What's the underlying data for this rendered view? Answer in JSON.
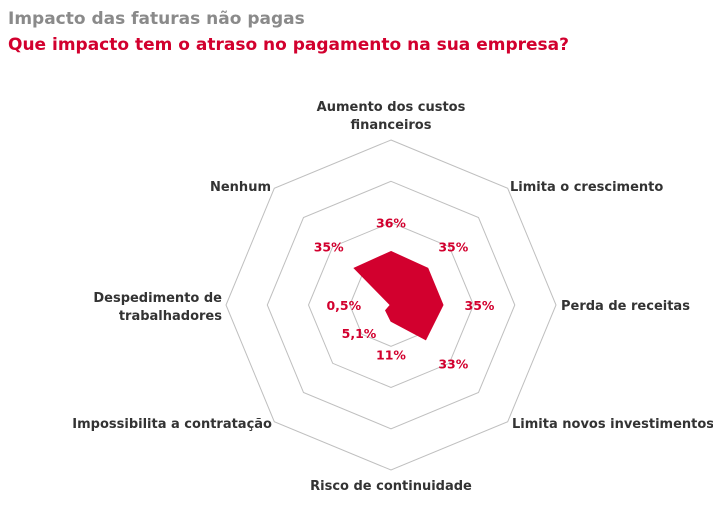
{
  "title": "Impacto das faturas não pagas",
  "subtitle": "Que impacto tem o atraso no pagamento na sua empresa?",
  "colors": {
    "title": "#8a8a8a",
    "subtitle": "#d2002e",
    "series": "#d2002e",
    "grid": "#bfbfbf",
    "axis_label": "#333333"
  },
  "chart_data": {
    "type": "radar",
    "grid": true,
    "grid_rings": 4,
    "r_max": 100,
    "axes": [
      {
        "label": [
          "Aumento dos custos",
          "financeiros"
        ],
        "value": 36,
        "value_label": "36%"
      },
      {
        "label": [
          "Limita o crescimento"
        ],
        "value": 35,
        "value_label": "35%"
      },
      {
        "label": [
          "Perda de receitas"
        ],
        "value": 35,
        "value_label": "35%"
      },
      {
        "label": [
          "Limita novos investimentos"
        ],
        "value": 33,
        "value_label": "33%"
      },
      {
        "label": [
          "Risco de continuidade"
        ],
        "value": 11,
        "value_label": "11%"
      },
      {
        "label": [
          "Impossibilita a contratação"
        ],
        "value": 5.1,
        "value_label": "5,1%"
      },
      {
        "label": [
          "Despedimento de",
          "trabalhadores"
        ],
        "value": 0.5,
        "value_label": "0,5%"
      },
      {
        "label": [
          "Nenhum"
        ],
        "value": 35,
        "value_label": "35%"
      }
    ]
  }
}
